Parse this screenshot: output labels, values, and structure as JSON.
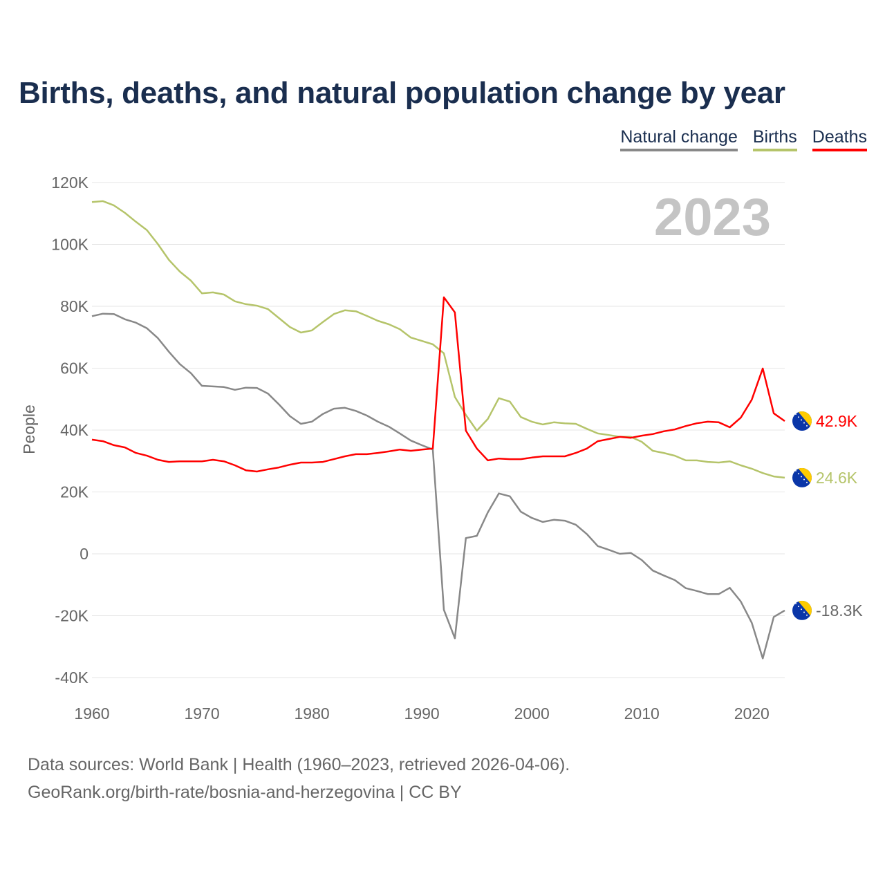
{
  "chart_data": {
    "type": "line",
    "title": "Births, deaths, and natural population change by year",
    "ylabel": "People",
    "xlabel": "",
    "year_watermark": "2023",
    "xlim": [
      1960,
      2023
    ],
    "ylim": [
      -40000,
      120000
    ],
    "x_ticks": [
      1960,
      1970,
      1980,
      1990,
      2000,
      2010,
      2020
    ],
    "x_tick_labels": [
      "1960",
      "1970",
      "1980",
      "1990",
      "2000",
      "2010",
      "2020"
    ],
    "y_ticks": [
      -40000,
      -20000,
      0,
      20000,
      40000,
      60000,
      80000,
      100000,
      120000
    ],
    "y_tick_labels": [
      "-40K",
      "-20K",
      "0",
      "20K",
      "40K",
      "60K",
      "80K",
      "100K",
      "120K"
    ],
    "grid": true,
    "legend_position": "top-right",
    "x": [
      1960,
      1961,
      1962,
      1963,
      1964,
      1965,
      1966,
      1967,
      1968,
      1969,
      1970,
      1971,
      1972,
      1973,
      1974,
      1975,
      1976,
      1977,
      1978,
      1979,
      1980,
      1981,
      1982,
      1983,
      1984,
      1985,
      1986,
      1987,
      1988,
      1989,
      1990,
      1991,
      1992,
      1993,
      1994,
      1995,
      1996,
      1997,
      1998,
      1999,
      2000,
      2001,
      2002,
      2003,
      2004,
      2005,
      2006,
      2007,
      2008,
      2009,
      2010,
      2011,
      2012,
      2013,
      2014,
      2015,
      2016,
      2017,
      2018,
      2019,
      2020,
      2021,
      2022,
      2023
    ],
    "series": [
      {
        "name": "Natural change",
        "color": "#888888",
        "end_label": "-18.3K",
        "values": [
          76.8,
          77.6,
          77.5,
          75.8,
          74.7,
          72.9,
          69.7,
          65.3,
          61.3,
          58.4,
          54.3,
          54.1,
          53.9,
          53.0,
          53.7,
          53.6,
          51.8,
          48.3,
          44.5,
          42.0,
          42.7,
          45.2,
          46.9,
          47.2,
          46.2,
          44.7,
          42.7,
          41.1,
          38.9,
          36.6,
          35.1,
          33.7,
          -18.1,
          -27.3,
          5.1,
          5.8,
          13.4,
          19.5,
          18.6,
          13.6,
          11.6,
          10.3,
          11.0,
          10.7,
          9.4,
          6.4,
          2.5,
          1.3,
          0.0,
          0.3,
          -2.0,
          -5.4,
          -7.0,
          -8.5,
          -11.1,
          -12.0,
          -13.0,
          -13.0,
          -11.0,
          -15.4,
          -22.3,
          -33.8,
          -20.4,
          -18.3
        ]
      },
      {
        "name": "Births",
        "color": "#b5c46a",
        "end_label": "24.6K",
        "values": [
          113.7,
          114.0,
          112.6,
          110.2,
          107.3,
          104.6,
          100.1,
          95.0,
          91.2,
          88.3,
          84.2,
          84.5,
          83.8,
          81.6,
          80.7,
          80.2,
          79.1,
          76.2,
          73.3,
          71.5,
          72.2,
          74.9,
          77.5,
          78.7,
          78.4,
          76.9,
          75.3,
          74.2,
          72.6,
          69.9,
          68.8,
          67.7,
          64.8,
          50.7,
          44.9,
          39.8,
          43.6,
          50.3,
          49.2,
          44.2,
          42.7,
          41.8,
          42.5,
          42.2,
          42.0,
          40.4,
          38.9,
          38.4,
          37.8,
          37.8,
          36.2,
          33.3,
          32.6,
          31.7,
          30.2,
          30.2,
          29.7,
          29.5,
          29.9,
          28.6,
          27.5,
          26.1,
          25.0,
          24.6
        ]
      },
      {
        "name": "Deaths",
        "color": "#ff0000",
        "end_label": "42.9K",
        "values": [
          36.9,
          36.4,
          35.1,
          34.4,
          32.6,
          31.7,
          30.4,
          29.7,
          29.9,
          29.9,
          29.9,
          30.4,
          29.9,
          28.6,
          27.0,
          26.6,
          27.3,
          27.9,
          28.8,
          29.5,
          29.5,
          29.7,
          30.6,
          31.5,
          32.2,
          32.2,
          32.6,
          33.1,
          33.7,
          33.3,
          33.7,
          34.0,
          82.9,
          78.0,
          39.8,
          34.0,
          30.2,
          30.8,
          30.6,
          30.6,
          31.1,
          31.5,
          31.5,
          31.5,
          32.6,
          34.0,
          36.4,
          37.1,
          37.8,
          37.5,
          38.2,
          38.7,
          39.6,
          40.2,
          41.3,
          42.2,
          42.7,
          42.5,
          40.9,
          44.0,
          49.8,
          59.9,
          45.4,
          42.9
        ]
      }
    ],
    "values_unit": "thousands"
  },
  "legend": [
    "Natural change",
    "Births",
    "Deaths"
  ],
  "footer": {
    "line1": "Data sources: World Bank | Health (1960–2023, retrieved 2026-04-06).",
    "line2": "GeoRank.org/birth-rate/bosnia-and-herzegovina | CC BY"
  }
}
